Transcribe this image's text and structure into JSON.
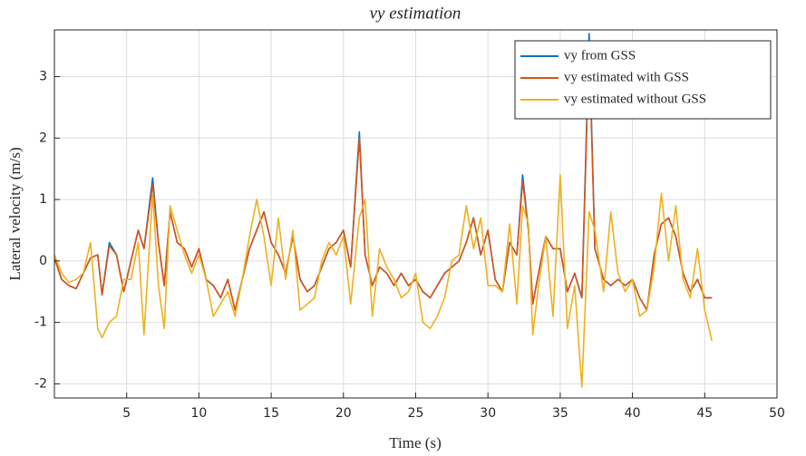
{
  "chart_data": {
    "type": "line",
    "title": "vy estimation",
    "x_label": "Time (s)",
    "y_label": "Lateral velocity (m/s)",
    "x": [
      0,
      0.5,
      1,
      1.5,
      2,
      2.5,
      3,
      3.3,
      3.8,
      4.3,
      4.8,
      5.3,
      5.8,
      6.2,
      6.8,
      7.2,
      7.6,
      8,
      8.5,
      9,
      9.5,
      10,
      10.5,
      11,
      11.5,
      12,
      12.5,
      13,
      13.5,
      14,
      14.5,
      15,
      15.5,
      16,
      16.5,
      17,
      17.5,
      18,
      18.5,
      19,
      19.5,
      20,
      20.5,
      21.1,
      21.5,
      22,
      22.5,
      23,
      23.5,
      24,
      24.5,
      25,
      25.5,
      26,
      26.5,
      27,
      27.5,
      28,
      28.5,
      29,
      29.5,
      30,
      30.5,
      31,
      31.5,
      32,
      32.4,
      32.8,
      33.1,
      33.5,
      34,
      34.5,
      35,
      35.5,
      36,
      36.5,
      37,
      37.4,
      38,
      38.5,
      39,
      39.5,
      40,
      40.5,
      41,
      41.5,
      42,
      42.5,
      43,
      43.5,
      44,
      44.5,
      45,
      45.5
    ],
    "series": [
      {
        "name": "vy from GSS",
        "color": "#0072BD",
        "values": [
          0.05,
          -0.3,
          -0.4,
          -0.45,
          -0.2,
          0.05,
          0.1,
          -0.55,
          0.3,
          0.1,
          -0.5,
          0,
          0.5,
          0.2,
          1.35,
          0.3,
          -0.4,
          0.8,
          0.3,
          0.2,
          -0.1,
          0.2,
          -0.3,
          -0.4,
          -0.6,
          -0.3,
          -0.8,
          -0.3,
          0.2,
          0.5,
          0.8,
          0.3,
          0.1,
          -0.2,
          0.4,
          -0.3,
          -0.5,
          -0.4,
          -0.1,
          0.2,
          0.3,
          0.5,
          -0.1,
          2.1,
          0.1,
          -0.4,
          -0.1,
          -0.2,
          -0.4,
          -0.2,
          -0.4,
          -0.3,
          -0.5,
          -0.6,
          -0.4,
          -0.2,
          -0.1,
          0,
          0.3,
          0.7,
          0.1,
          0.5,
          -0.3,
          -0.5,
          0.3,
          0.1,
          1.4,
          0.5,
          -0.7,
          -0.2,
          0.4,
          0.2,
          0.2,
          -0.5,
          -0.2,
          -0.6,
          3.7,
          0.2,
          -0.3,
          -0.4,
          -0.3,
          -0.4,
          -0.3,
          -0.6,
          -0.8,
          0.1,
          0.6,
          0.7,
          0.4,
          -0.2,
          -0.5,
          -0.3,
          -0.6,
          -0.6
        ]
      },
      {
        "name": "vy estimated with GSS",
        "color": "#D95319",
        "values": [
          0.05,
          -0.3,
          -0.4,
          -0.45,
          -0.2,
          0.05,
          0.1,
          -0.55,
          0.25,
          0.1,
          -0.5,
          0,
          0.5,
          0.2,
          1.25,
          0.3,
          -0.4,
          0.8,
          0.3,
          0.2,
          -0.1,
          0.2,
          -0.3,
          -0.4,
          -0.6,
          -0.3,
          -0.8,
          -0.3,
          0.2,
          0.5,
          0.8,
          0.3,
          0.1,
          -0.2,
          0.4,
          -0.3,
          -0.5,
          -0.4,
          -0.1,
          0.2,
          0.3,
          0.5,
          -0.1,
          2.0,
          0.1,
          -0.4,
          -0.1,
          -0.2,
          -0.4,
          -0.2,
          -0.4,
          -0.3,
          -0.5,
          -0.6,
          -0.4,
          -0.2,
          -0.1,
          0,
          0.3,
          0.7,
          0.1,
          0.5,
          -0.3,
          -0.5,
          0.3,
          0.1,
          1.3,
          0.5,
          -0.7,
          -0.2,
          0.4,
          0.2,
          0.2,
          -0.5,
          -0.2,
          -0.6,
          3.5,
          0.2,
          -0.3,
          -0.4,
          -0.3,
          -0.4,
          -0.3,
          -0.6,
          -0.8,
          0.1,
          0.6,
          0.7,
          0.4,
          -0.2,
          -0.5,
          -0.3,
          -0.6,
          -0.6
        ]
      },
      {
        "name": "vy estimated without GSS",
        "color": "#EDB120",
        "values": [
          0.1,
          -0.2,
          -0.35,
          -0.3,
          -0.2,
          0.3,
          -1.1,
          -1.25,
          -1.0,
          -0.9,
          -0.3,
          -0.3,
          0.3,
          -1.2,
          1.1,
          -0.4,
          -1.1,
          0.9,
          0.5,
          0.1,
          -0.2,
          0.1,
          -0.3,
          -0.9,
          -0.7,
          -0.5,
          -0.9,
          -0.3,
          0.4,
          1.0,
          0.4,
          -0.4,
          0.7,
          -0.3,
          0.5,
          -0.8,
          -0.7,
          -0.6,
          0.0,
          0.3,
          0.1,
          0.4,
          -0.7,
          0.7,
          1.0,
          -0.9,
          0.2,
          -0.1,
          -0.3,
          -0.6,
          -0.5,
          -0.2,
          -1.0,
          -1.1,
          -0.9,
          -0.6,
          0.0,
          0.1,
          0.9,
          0.2,
          0.7,
          -0.4,
          -0.4,
          -0.5,
          0.6,
          -0.7,
          0.9,
          0.6,
          -1.2,
          -0.4,
          0.4,
          -0.9,
          1.4,
          -1.1,
          -0.4,
          -2.05,
          0.8,
          0.5,
          -0.5,
          0.8,
          -0.2,
          -0.5,
          -0.3,
          -0.9,
          -0.8,
          -0.1,
          1.1,
          0.0,
          0.9,
          -0.3,
          -0.6,
          0.2,
          -0.8,
          -1.3
        ]
      }
    ],
    "xlim": [
      0,
      50
    ],
    "xticks": [
      5,
      10,
      15,
      20,
      25,
      30,
      35,
      40,
      45,
      50
    ],
    "ylim": [
      -2.23,
      3.76
    ],
    "yticks": [
      -2,
      -1,
      0,
      1,
      2,
      3
    ],
    "grid": true,
    "legend": "northeast"
  }
}
